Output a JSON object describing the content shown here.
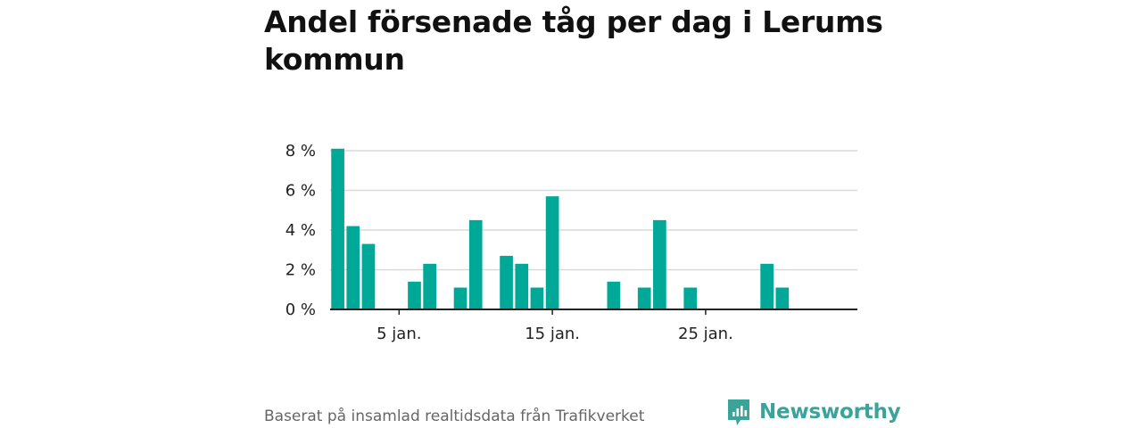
{
  "title": "Andel försenade tåg per dag i Lerums kommun",
  "source": "Baserat på insamlad realtidsdata från Trafikverket",
  "brand": {
    "name": "Newsworthy",
    "icon": "newsworthy-logo-icon",
    "color": "#3aa39a"
  },
  "chart_data": {
    "type": "bar",
    "x_unit": "day of January",
    "x": [
      1,
      2,
      3,
      4,
      5,
      6,
      7,
      8,
      9,
      10,
      11,
      12,
      13,
      14,
      15,
      16,
      17,
      18,
      19,
      20,
      21,
      22,
      23,
      24,
      25,
      26,
      27,
      28,
      29,
      30,
      31
    ],
    "values": [
      8.1,
      4.2,
      3.3,
      0,
      0,
      1.4,
      2.3,
      0,
      1.1,
      4.5,
      0,
      2.7,
      2.3,
      1.1,
      5.7,
      0,
      0,
      0,
      1.4,
      0,
      1.1,
      4.5,
      0,
      1.1,
      0,
      0,
      0,
      0,
      2.3,
      1.1,
      0
    ],
    "ylim": [
      0,
      8
    ],
    "yticks": [
      0,
      2,
      4,
      6,
      8
    ],
    "ytick_labels": [
      "0 %",
      "2 %",
      "4 %",
      "6 %",
      "8 %"
    ],
    "xticks": [
      5,
      15,
      25
    ],
    "xtick_labels": [
      "5 jan.",
      "15 jan.",
      "25 jan."
    ],
    "grid": true,
    "bar_color": "#00a898",
    "grid_color": "#d9d9d9",
    "axis_color": "#222222"
  }
}
